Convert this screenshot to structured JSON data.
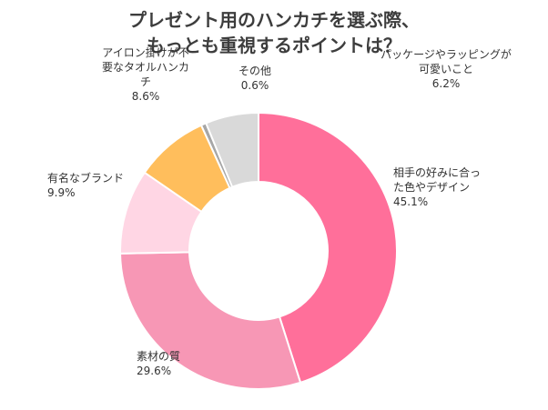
{
  "chart_data": {
    "type": "pie",
    "title": "プレゼント用のハンカチを選ぶ際、",
    "subtitle": "もっとも重視するポイントは？",
    "slices": [
      {
        "label_lines": [
          "相手の好みに合っ",
          "た色やデザイン"
        ],
        "value": 45.1,
        "value_label": "45.1%",
        "color": "#ff6f9a"
      },
      {
        "label_lines": [
          "素材の質"
        ],
        "value": 29.6,
        "value_label": "29.6%",
        "color": "#f797b5"
      },
      {
        "label_lines": [
          "有名なブランド"
        ],
        "value": 9.9,
        "value_label": "9.9%",
        "color": "#ffd6e4"
      },
      {
        "label_lines": [
          "アイロン掛けが不",
          "要なタオルハンカ",
          "チ"
        ],
        "value": 8.6,
        "value_label": "8.6%",
        "color": "#ffbe5c"
      },
      {
        "label_lines": [
          "その他"
        ],
        "value": 0.6,
        "value_label": "0.6%",
        "color": "#a6a6a6"
      },
      {
        "label_lines": [
          "パッケージやラッピングが",
          "可愛いこと"
        ],
        "value": 6.2,
        "value_label": "6.2%",
        "color": "#d9d9d9"
      }
    ],
    "donut": true,
    "start": "top",
    "direction": "clockwise"
  }
}
